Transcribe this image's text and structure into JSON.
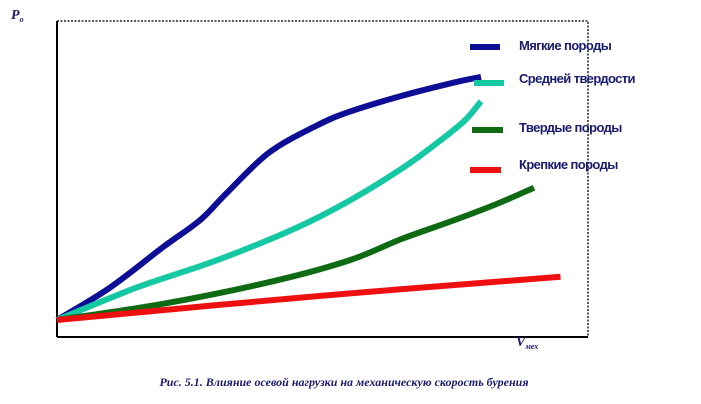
{
  "chart_data": {
    "type": "line",
    "title": "",
    "xlabel": "Vмех",
    "ylabel": "Pо",
    "xlim": [
      0,
      100
    ],
    "ylim": [
      0,
      100
    ],
    "grid": false,
    "legend_position": "top-right",
    "series": [
      {
        "name": "Мягкие породы",
        "color": "#0d0d96",
        "x": [
          0,
          10,
          20,
          27,
          32,
          40,
          49,
          55,
          65,
          75,
          80
        ],
        "y": [
          0,
          12,
          27,
          37,
          47,
          62,
          72,
          77,
          83,
          88,
          90
        ]
      },
      {
        "name": "Средней твердости",
        "color": "#14c8a4",
        "x": [
          0,
          15,
          30,
          45,
          55,
          65,
          72,
          77,
          80
        ],
        "y": [
          0,
          12,
          22,
          34,
          44,
          56,
          66,
          74,
          81
        ]
      },
      {
        "name": "Твердые породы",
        "color": "#0f6a14",
        "x": [
          0,
          20,
          40,
          55,
          65,
          75,
          83,
          90
        ],
        "y": [
          0,
          6,
          14,
          22,
          30,
          37,
          43,
          49
        ]
      },
      {
        "name": "Крепкие породы",
        "color": "#ee1010",
        "x": [
          0,
          50,
          95
        ],
        "y": [
          0,
          9,
          16
        ]
      }
    ]
  },
  "caption": "Рис. 5.1. Влияние осевой нагрузки на механическую скорость бурения",
  "axis_labels": {
    "y_main": "P",
    "y_sub": "о",
    "x_main": "V",
    "x_sub": "мех"
  }
}
